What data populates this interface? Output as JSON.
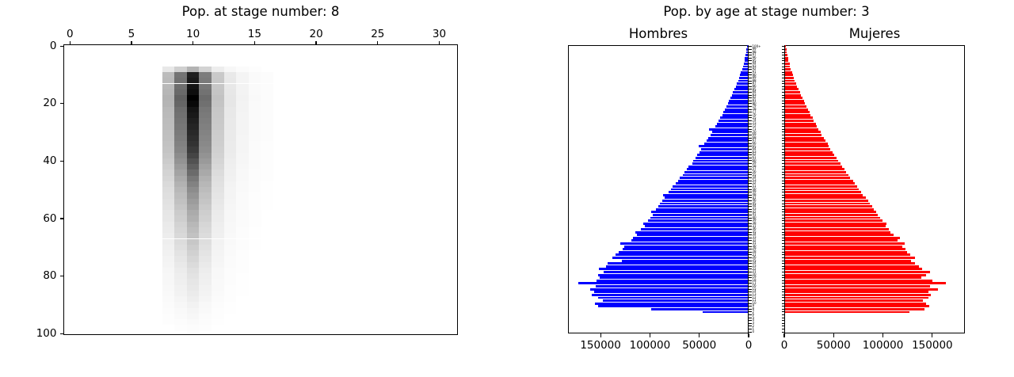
{
  "figure": {
    "background": "#ffffff"
  },
  "chart_data": [
    {
      "type": "heatmap",
      "title": "Pop. at stage number: 8",
      "colormap": "Greys (white = 0, black = max)",
      "x_ticks": [
        0,
        5,
        10,
        15,
        20,
        25,
        30
      ],
      "y_ticks": [
        0,
        20,
        40,
        60,
        80,
        100
      ],
      "xlim": [
        -0.5,
        31.5
      ],
      "ylim": [
        100.5,
        -0.5
      ],
      "x_axis_position": "top",
      "grid": false,
      "column_weights": {
        "8": 0.3,
        "9": 0.62,
        "10": 1.0,
        "11": 0.58,
        "12": 0.24,
        "13": 0.1,
        "14": 0.05,
        "15": 0.022,
        "16": 0.012
      },
      "age_profile_start": 7,
      "age_profile_step": 2,
      "age_profile": [
        0.3,
        0.88,
        0.9,
        0.92,
        0.95,
        1.0,
        0.97,
        0.92,
        0.9,
        0.88,
        0.86,
        0.84,
        0.82,
        0.8,
        0.77,
        0.73,
        0.68,
        0.63,
        0.58,
        0.53,
        0.49,
        0.45,
        0.42,
        0.39,
        0.36,
        0.33,
        0.31,
        0.28,
        0.26,
        0.24,
        0.22,
        0.2,
        0.18,
        0.16,
        0.14,
        0.12,
        0.11,
        0.1,
        0.09,
        0.08,
        0.065,
        0.05,
        0.04,
        0.03,
        0.02,
        0.012,
        0.006
      ]
    },
    {
      "type": "bar",
      "subtype": "population-pyramid",
      "suptitle": "Pop. by age at stage number: 3",
      "xmax": 183000,
      "ages_from": 0,
      "ages_to": 100,
      "age_labels": {
        "from": 0,
        "to": 99,
        "top_label": "100+"
      },
      "series": [
        {
          "name": "Hombres",
          "color": "#0000ff",
          "orientation": "right-to-left",
          "x_ticks": [
            150000,
            100000,
            50000,
            0
          ],
          "values": [
            0,
            0,
            0,
            0,
            0,
            0,
            0,
            46000,
            98000,
            152000,
            155000,
            147000,
            152000,
            158000,
            156000,
            160000,
            154000,
            172000,
            153000,
            150000,
            152000,
            146000,
            151000,
            144000,
            142000,
            128000,
            137000,
            134000,
            131000,
            127000,
            125000,
            129000,
            118000,
            116000,
            112000,
            114000,
            108000,
            104000,
            106000,
            101000,
            99000,
            96000,
            98000,
            93000,
            91000,
            89000,
            87000,
            84000,
            86000,
            80000,
            78000,
            76000,
            73000,
            71000,
            69000,
            66000,
            64000,
            62000,
            60000,
            56000,
            55000,
            53000,
            51000,
            49000,
            47000,
            50000,
            44000,
            42000,
            40000,
            38000,
            36000,
            39000,
            33000,
            31000,
            30000,
            28000,
            26000,
            25000,
            23000,
            22000,
            20000,
            19000,
            18000,
            16000,
            15000,
            14000,
            12000,
            11000,
            10000,
            9000,
            8000,
            7000,
            6000,
            5000,
            4000,
            3500,
            3000,
            2500,
            2000,
            1500,
            1000
          ]
        },
        {
          "name": "Mujeres",
          "color": "#ff0000",
          "orientation": "left-to-right",
          "x_ticks": [
            0,
            50000,
            100000,
            150000
          ],
          "values": [
            0,
            0,
            0,
            0,
            0,
            0,
            0,
            126000,
            141000,
            146000,
            143000,
            140000,
            145000,
            148000,
            145000,
            155000,
            147000,
            163000,
            149000,
            138000,
            143000,
            147000,
            139000,
            136000,
            132000,
            128000,
            132000,
            127000,
            124000,
            122000,
            119000,
            121000,
            114000,
            116000,
            110000,
            107000,
            105000,
            102000,
            103000,
            99000,
            96000,
            94000,
            92000,
            90000,
            88000,
            86000,
            84000,
            82000,
            79000,
            77000,
            75000,
            73000,
            71000,
            69000,
            66000,
            64000,
            62000,
            60000,
            58000,
            56000,
            54000,
            52000,
            50000,
            48000,
            46000,
            44000,
            43000,
            41000,
            39000,
            37000,
            36000,
            34000,
            32000,
            31000,
            29000,
            28000,
            26000,
            25000,
            23000,
            22000,
            20000,
            19000,
            18000,
            16000,
            15000,
            14000,
            12000,
            11000,
            10000,
            9000,
            8000,
            7000,
            6000,
            5000,
            4500,
            3500,
            3000,
            2500,
            2000,
            1500,
            1000
          ]
        }
      ]
    }
  ]
}
